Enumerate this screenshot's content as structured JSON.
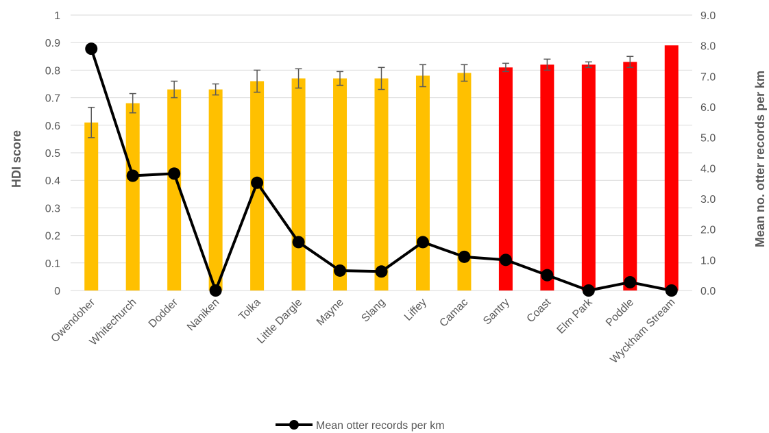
{
  "chart_data": {
    "type": "bar",
    "categories": [
      "Owendoher",
      "Whitechurch",
      "Dodder",
      "Naniken",
      "Tolka",
      "Little Dargle",
      "Mayne",
      "Slang",
      "Liffey",
      "Camac",
      "Santry",
      "Coast",
      "Elm Park",
      "Poddle",
      "Wyckham Stream"
    ],
    "hdi_series": {
      "values": [
        0.61,
        0.68,
        0.73,
        0.73,
        0.76,
        0.77,
        0.77,
        0.77,
        0.78,
        0.79,
        0.81,
        0.82,
        0.82,
        0.83,
        0.89
      ],
      "error": [
        0.055,
        0.035,
        0.03,
        0.02,
        0.04,
        0.035,
        0.025,
        0.04,
        0.04,
        0.03,
        0.015,
        0.02,
        0.01,
        0.02,
        0.0
      ],
      "colors": [
        "#FFC000",
        "#FFC000",
        "#FFC000",
        "#FFC000",
        "#FFC000",
        "#FFC000",
        "#FFC000",
        "#FFC000",
        "#FFC000",
        "#FFC000",
        "#FF0000",
        "#FF0000",
        "#FF0000",
        "#FF0000",
        "#FF0000"
      ]
    },
    "line_series": {
      "name": "Mean otter records per km",
      "values": [
        7.9,
        3.75,
        3.82,
        0.0,
        3.52,
        1.58,
        0.65,
        0.62,
        1.58,
        1.1,
        1.0,
        0.5,
        0.0,
        0.27,
        0.0
      ],
      "color": "#000000"
    },
    "y_left": {
      "label": "HDI score",
      "ylim": [
        0,
        1
      ],
      "ticks": [
        "0",
        "0.1",
        "0.2",
        "0.3",
        "0.4",
        "0.5",
        "0.6",
        "0.7",
        "0.8",
        "0.9",
        "1"
      ]
    },
    "y_right": {
      "label": "Mean no. otter records per km",
      "ylim": [
        0,
        9
      ],
      "ticks": [
        "0.0",
        "1.0",
        "2.0",
        "3.0",
        "4.0",
        "5.0",
        "6.0",
        "7.0",
        "8.0",
        "9.0"
      ]
    },
    "grid": true,
    "legend": "bottom"
  }
}
